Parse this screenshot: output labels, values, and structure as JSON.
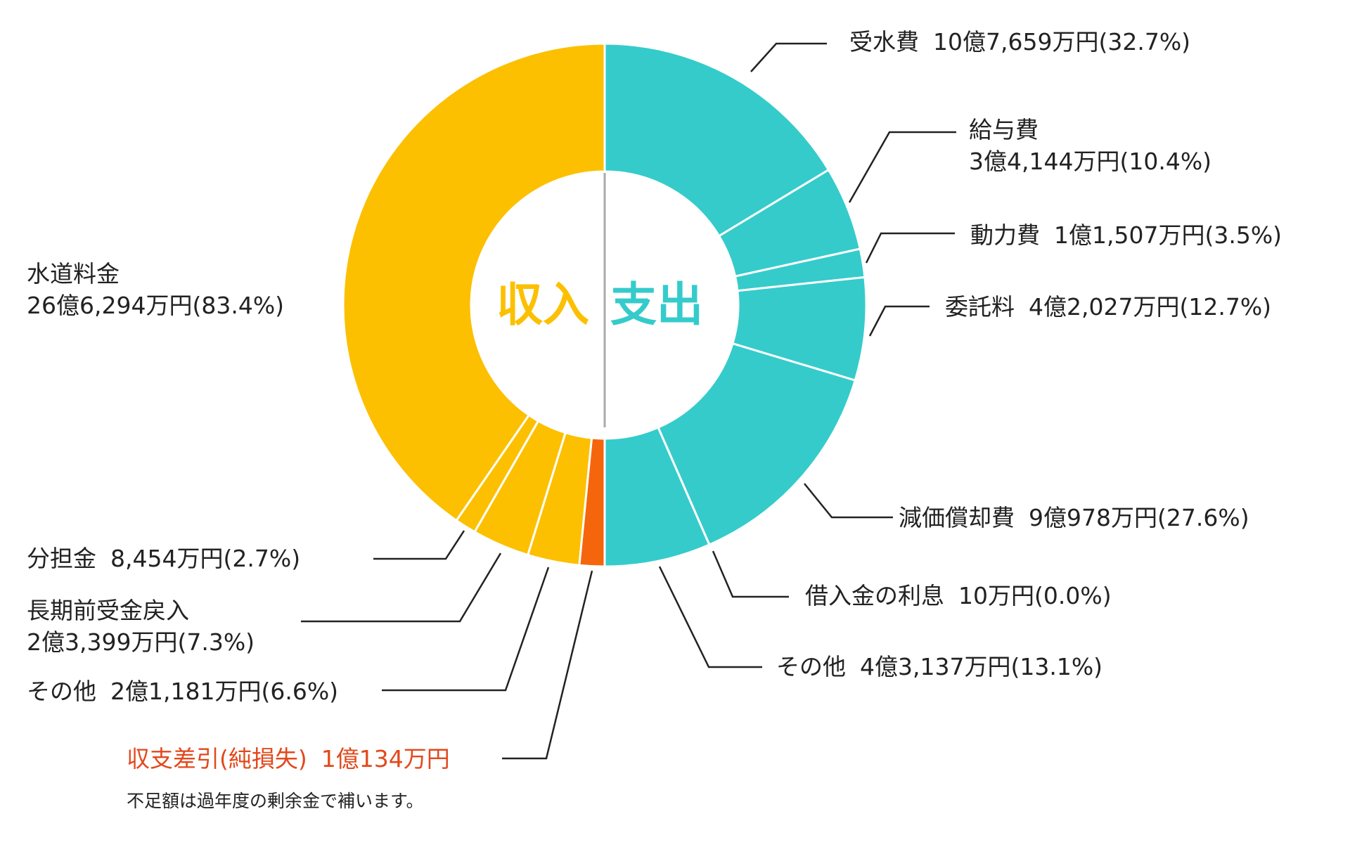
{
  "chart_data": {
    "type": "pie",
    "style": "donut",
    "center_labels": {
      "income": "収入",
      "expense": "支出"
    },
    "colors": {
      "income": "#fcc000",
      "expense": "#35cbcb",
      "deficit": "#f5650c"
    },
    "income": [
      {
        "name": "水道料金",
        "amount": "26億6,294万円",
        "percent": 83.4,
        "percent_label": "(83.4%)"
      },
      {
        "name": "分担金",
        "amount": "8,454万円",
        "percent": 2.7,
        "percent_label": "(2.7%)"
      },
      {
        "name": "長期前受金戻入",
        "amount": "2億3,399万円",
        "percent": 7.3,
        "percent_label": "(7.3%)"
      },
      {
        "name": "その他",
        "amount": "2億1,181万円",
        "percent": 6.6,
        "percent_label": "(6.6%)"
      },
      {
        "name": "収支差引(純損失)",
        "amount": "1億134万円",
        "percent": 3.2,
        "percent_label": ""
      }
    ],
    "expense": [
      {
        "name": "受水費",
        "amount": "10億7,659万円",
        "percent": 32.7,
        "percent_label": "(32.7%)"
      },
      {
        "name": "給与費",
        "amount": "3億4,144万円",
        "percent": 10.4,
        "percent_label": "(10.4%)"
      },
      {
        "name": "動力費",
        "amount": "1億1,507万円",
        "percent": 3.5,
        "percent_label": "(3.5%)"
      },
      {
        "name": "委託料",
        "amount": "4億2,027万円",
        "percent": 12.7,
        "percent_label": "(12.7%)"
      },
      {
        "name": "減価償却費",
        "amount": "9億978万円",
        "percent": 27.6,
        "percent_label": "(27.6%)"
      },
      {
        "name": "借入金の利息",
        "amount": "10万円",
        "percent": 0.0,
        "percent_label": "(0.0%)"
      },
      {
        "name": "その他",
        "amount": "4億3,137万円",
        "percent": 13.1,
        "percent_label": "(13.1%)"
      }
    ],
    "note": "不足額は過年度の剰余金で補います。"
  }
}
